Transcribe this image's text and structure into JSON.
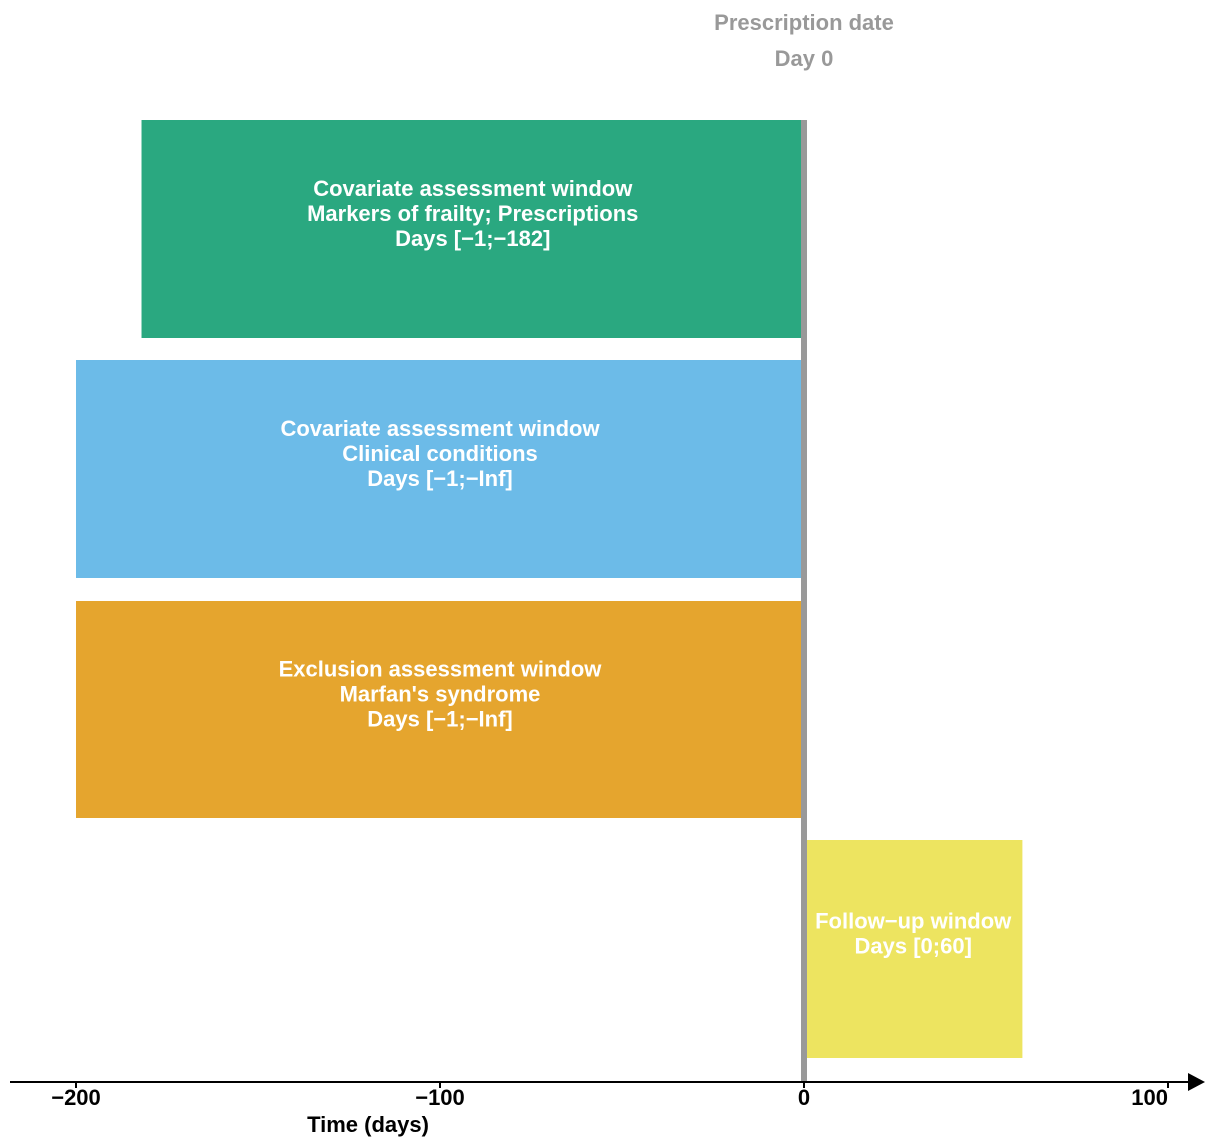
{
  "chart_data": {
    "type": "timeline",
    "xlabel": "Time (days)",
    "xlim": [
      -200,
      100
    ],
    "ticks": [
      {
        "value": -200,
        "label": "−200"
      },
      {
        "value": -100,
        "label": "−100"
      },
      {
        "value": 0,
        "label": "0"
      },
      {
        "value": 100,
        "label": "100"
      }
    ],
    "reference": {
      "value": 0,
      "title": "Prescription date",
      "subtitle": "Day 0",
      "color": "#999999"
    },
    "windows": [
      {
        "start": -182,
        "end": 0,
        "color": "#2aa880",
        "lines": [
          "Covariate assessment window",
          "Markers of frailty; Prescriptions",
          "Days [−1;−182]"
        ]
      },
      {
        "start": -200,
        "end": 0,
        "color": "#6cbbe8",
        "lines": [
          "Covariate assessment window",
          "Clinical conditions",
          "Days [−1;−Inf]"
        ]
      },
      {
        "start": -200,
        "end": 0,
        "color": "#e5a52e",
        "lines": [
          "Exclusion assessment window",
          "Marfan's syndrome",
          "Days [−1;−Inf]"
        ]
      },
      {
        "start": 0,
        "end": 60,
        "color": "#ede460",
        "lines": [
          "Follow−up window",
          "Days [0;60]"
        ]
      }
    ]
  }
}
